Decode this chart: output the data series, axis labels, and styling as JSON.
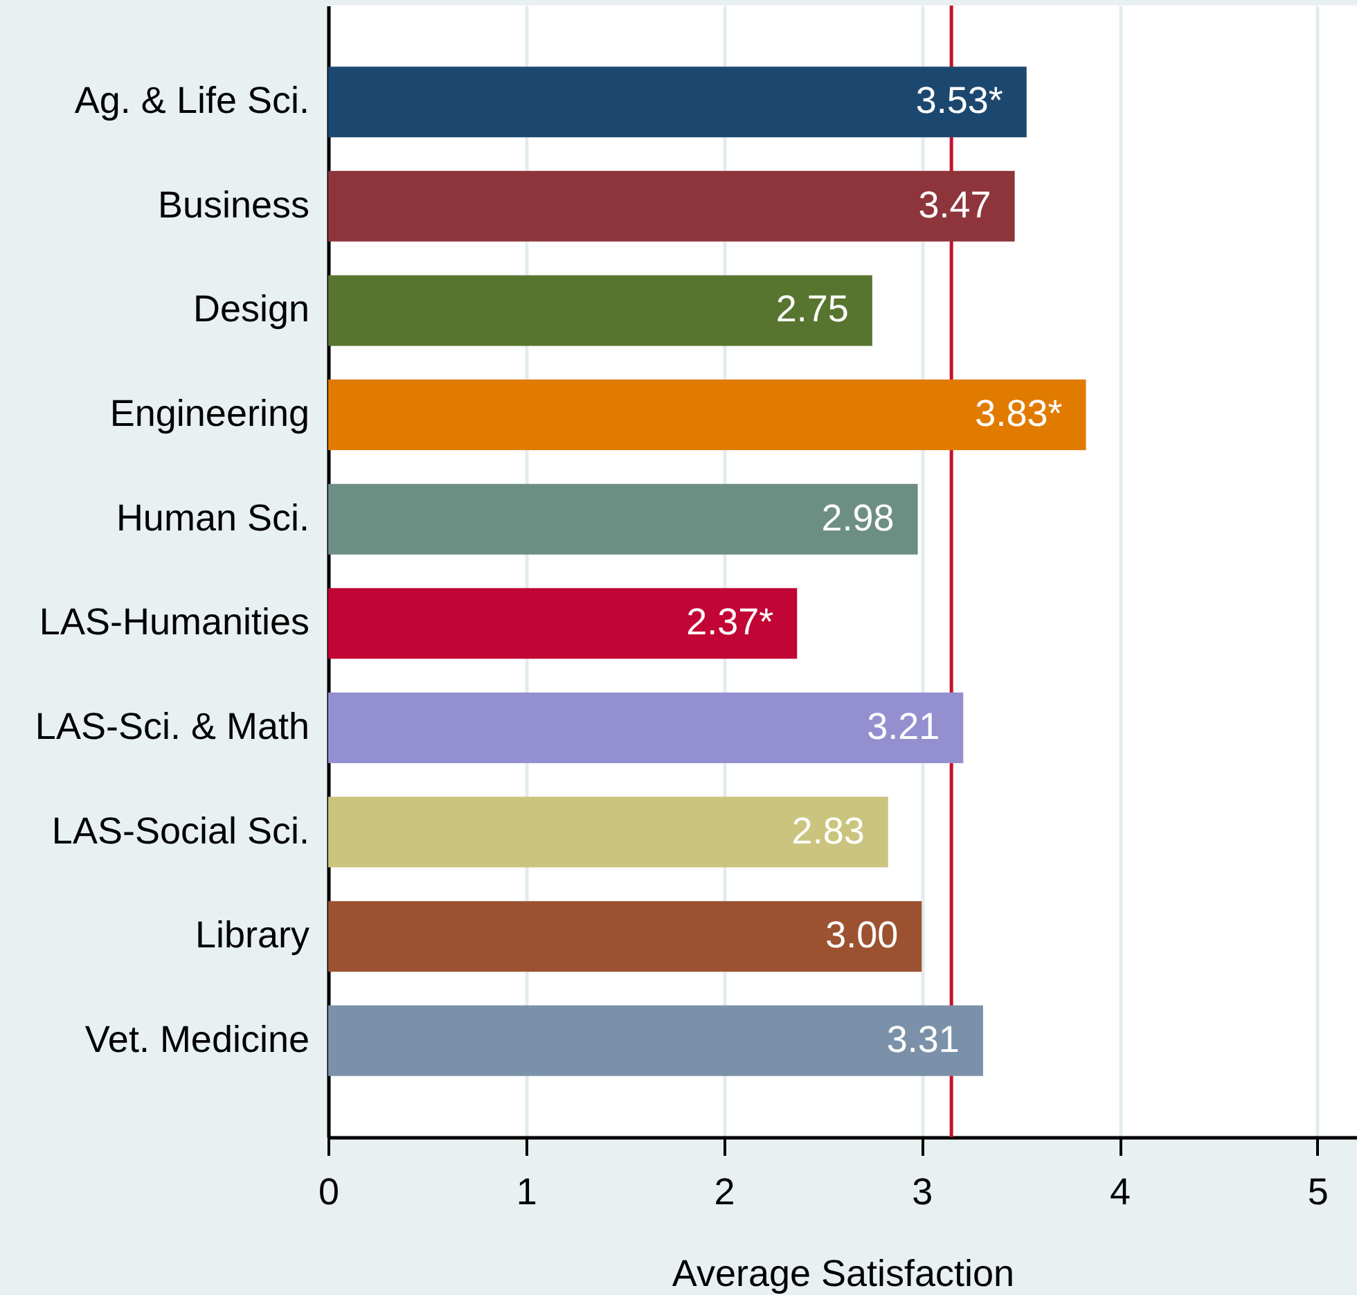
{
  "chart_data": {
    "type": "bar",
    "orientation": "horizontal",
    "categories": [
      "Ag. & Life Sci.",
      "Business",
      "Design",
      "Engineering",
      "Human Sci.",
      "LAS-Humanities",
      "LAS-Sci. & Math",
      "LAS-Social Sci.",
      "Library",
      "Vet. Medicine"
    ],
    "values": [
      3.53,
      3.47,
      2.75,
      3.83,
      2.98,
      2.37,
      3.21,
      2.83,
      3.0,
      3.31
    ],
    "colors": [
      "#1c4870",
      "#8e353c",
      "#58752f",
      "#e07b00",
      "#6d8e83",
      "#c10534",
      "#9490d0",
      "#cbc47f",
      "#9c5230",
      "#7b91a9"
    ],
    "value_labels": [
      "3.53*",
      "3.47",
      "2.75",
      "3.83*",
      "2.98",
      "2.37*",
      "3.21",
      "2.83",
      "3.00",
      "3.31"
    ],
    "xlabel": "Average Satisfaction",
    "xlim": [
      0,
      5.2
    ],
    "xticks": [
      0,
      1,
      2,
      3,
      4,
      5
    ],
    "grid": "x",
    "ref_lines": [
      {
        "axis": "x",
        "value": 3.15,
        "color": "#c8102e"
      }
    ]
  }
}
